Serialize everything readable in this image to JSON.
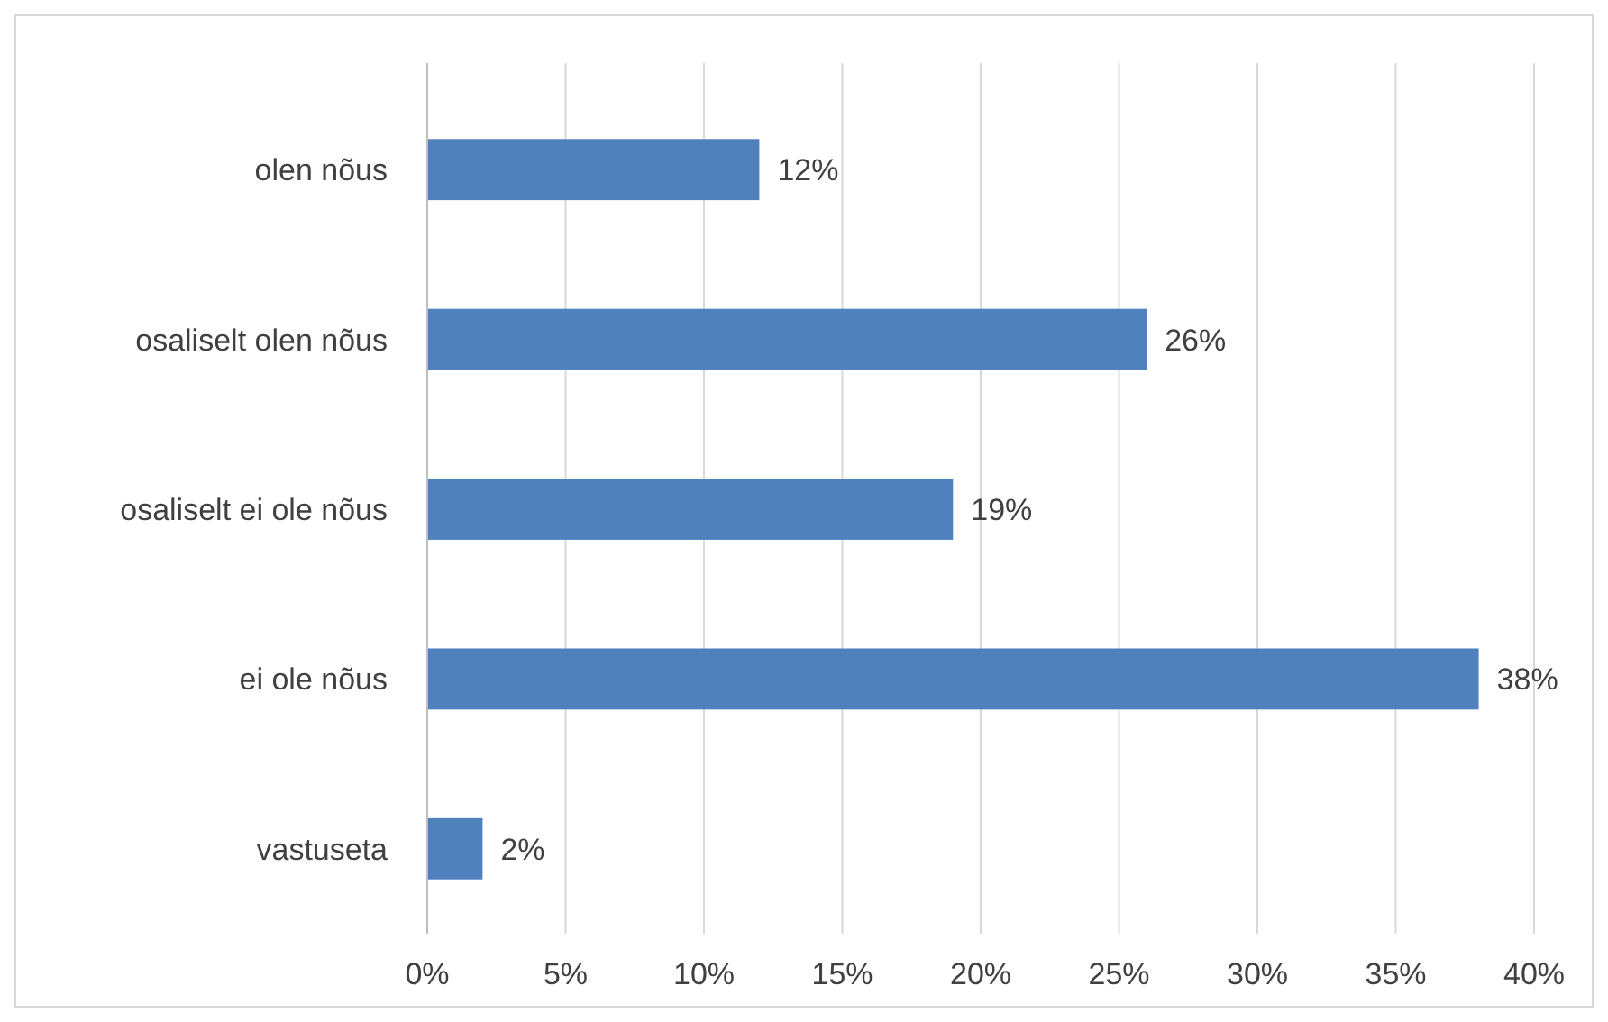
{
  "chart_data": {
    "type": "bar",
    "orientation": "horizontal",
    "categories": [
      "olen nõus",
      "osaliselt olen nõus",
      "osaliselt ei ole nõus",
      "ei ole nõus",
      "vastuseta"
    ],
    "values": [
      12,
      26,
      19,
      38,
      2
    ],
    "value_labels": [
      "12%",
      "26%",
      "19%",
      "38%",
      "2%"
    ],
    "color": "#4f81bd",
    "xlim": [
      0,
      40
    ],
    "xticks": [
      {
        "value": 0,
        "label": "0%"
      },
      {
        "value": 5,
        "label": "5%"
      },
      {
        "value": 10,
        "label": "10%"
      },
      {
        "value": 15,
        "label": "15%"
      },
      {
        "value": 20,
        "label": "20%"
      },
      {
        "value": 25,
        "label": "25%"
      },
      {
        "value": 30,
        "label": "30%"
      },
      {
        "value": 35,
        "label": "35%"
      },
      {
        "value": 40,
        "label": "40%"
      }
    ],
    "grid": "x"
  }
}
